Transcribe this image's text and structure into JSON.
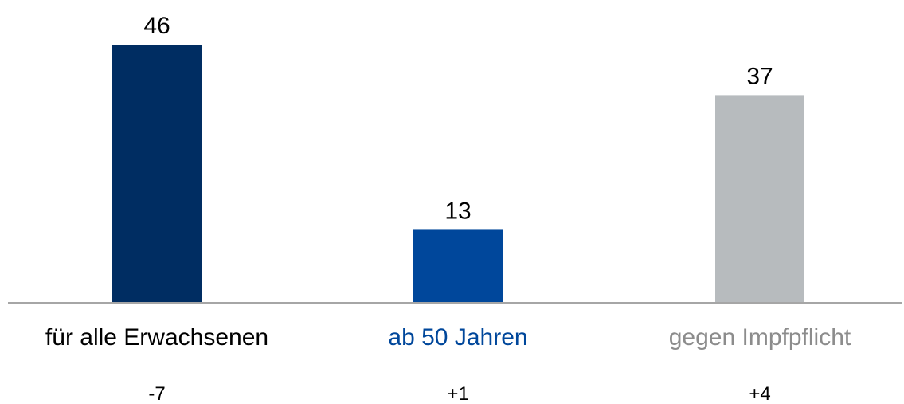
{
  "chart_data": {
    "type": "bar",
    "categories": [
      "für alle Erwachsenen",
      "ab 50 Jahren",
      "gegen Impfpflicht"
    ],
    "values": [
      46,
      13,
      37
    ],
    "changes": [
      "-7",
      "+1",
      "+4"
    ],
    "bar_colors": [
      "#002d62",
      "#00479b",
      "#b7bbbe"
    ],
    "label_colors": [
      "#000000",
      "#00479b",
      "#8c8c8c"
    ],
    "axis_color": "#a6a6a6",
    "title": "",
    "xlabel": "",
    "ylabel": "",
    "ylim": [
      0,
      46
    ],
    "grid": false,
    "legend": "none"
  }
}
